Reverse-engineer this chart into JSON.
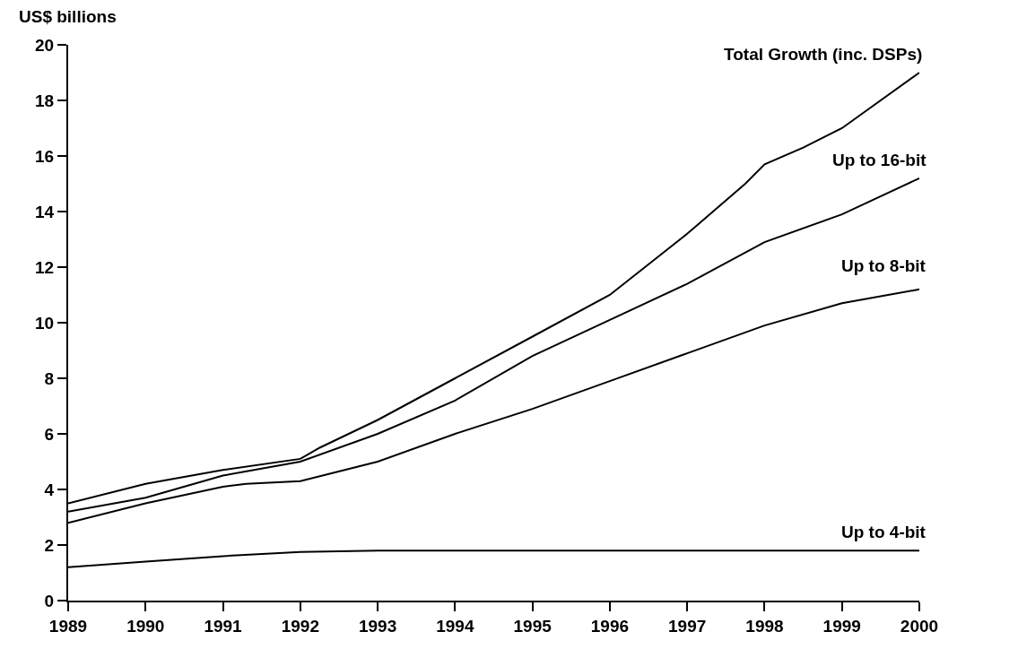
{
  "chart_data": {
    "type": "line",
    "ylabel": "US$ billions",
    "xlim": [
      1989,
      2000
    ],
    "xticks": [
      1989,
      1990,
      1991,
      1992,
      1993,
      1994,
      1995,
      1996,
      1997,
      1998,
      1999,
      2000
    ],
    "ylim": [
      0,
      20
    ],
    "yticks": [
      0,
      2,
      4,
      6,
      8,
      10,
      12,
      14,
      16,
      18,
      20
    ],
    "grid": false,
    "legend": false,
    "marker": "none",
    "line_style": "solid",
    "series": [
      {
        "name": "Total Growth (inc. DSPs)",
        "color": "#000000",
        "x": [
          1989,
          1990,
          1991,
          1992,
          1992.25,
          1993,
          1994,
          1995,
          1996,
          1997,
          1997.75,
          1998,
          1998.5,
          1999,
          2000
        ],
        "values": [
          3.5,
          4.2,
          4.7,
          5.1,
          5.5,
          6.5,
          8.0,
          9.5,
          11.0,
          13.2,
          15.0,
          15.7,
          16.3,
          17.0,
          19.0
        ]
      },
      {
        "name": "Up to 16-bit",
        "color": "#000000",
        "x": [
          1989,
          1990,
          1991,
          1992,
          1993,
          1994,
          1995,
          1996,
          1997,
          1998,
          1999,
          2000
        ],
        "values": [
          3.2,
          3.7,
          4.5,
          5.0,
          6.0,
          7.2,
          8.8,
          10.1,
          11.4,
          12.9,
          13.9,
          15.2
        ]
      },
      {
        "name": "Up to 8-bit",
        "color": "#000000",
        "x": [
          1989,
          1990,
          1991,
          1991.3,
          1992,
          1993,
          1994,
          1995,
          1996,
          1997,
          1998,
          1999,
          2000
        ],
        "values": [
          2.8,
          3.5,
          4.1,
          4.2,
          4.3,
          5.0,
          6.0,
          6.9,
          7.9,
          8.9,
          9.9,
          10.7,
          11.2
        ]
      },
      {
        "name": "Up to 4-bit",
        "color": "#000000",
        "x": [
          1989,
          1990,
          1991,
          1992,
          1993,
          2000
        ],
        "values": [
          1.2,
          1.4,
          1.6,
          1.75,
          1.8,
          1.8
        ]
      }
    ]
  }
}
